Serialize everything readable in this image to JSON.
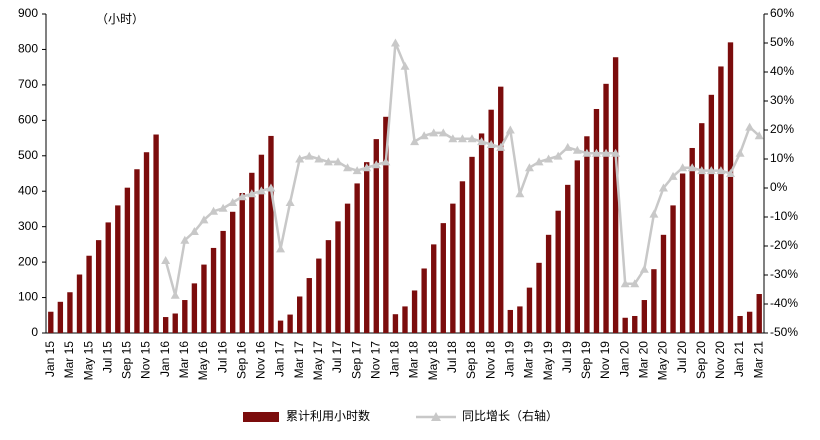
{
  "chart_data": {
    "type": "bar-line",
    "annotation": "（小时）",
    "categories": [
      "Jan 15",
      null,
      "Mar 15",
      null,
      "May 15",
      null,
      "Jul 15",
      null,
      "Sep 15",
      null,
      "Nov 15",
      null,
      "Jan 16",
      null,
      "Mar 16",
      null,
      "May 16",
      null,
      "Jul 16",
      null,
      "Sep 16",
      null,
      "Nov 16",
      null,
      "Jan 17",
      null,
      "Mar 17",
      null,
      "May 17",
      null,
      "Jul 17",
      null,
      "Sep 17",
      null,
      "Nov 17",
      null,
      "Jan 18",
      null,
      "Mar 18",
      null,
      "May 18",
      null,
      "Jul 18",
      null,
      "Sep 18",
      null,
      "Nov 18",
      null,
      "Jan 19",
      null,
      "Mar 19",
      null,
      "May 19",
      null,
      "Jul 19",
      null,
      "Sep 19",
      null,
      "Nov 19",
      null,
      "Jan 20",
      null,
      "Mar 20",
      null,
      "May 20",
      null,
      "Jul 20",
      null,
      "Sep 20",
      null,
      "Nov 20",
      null,
      "Jan 21",
      null,
      "Mar 21"
    ],
    "series": [
      {
        "name": "累计利用小时数",
        "color": "#7b0c0c",
        "type": "bar",
        "values": [
          60,
          88,
          115,
          165,
          218,
          262,
          312,
          360,
          410,
          462,
          510,
          560,
          45,
          55,
          93,
          140,
          193,
          240,
          288,
          342,
          395,
          452,
          503,
          556,
          35,
          52,
          103,
          155,
          210,
          262,
          315,
          365,
          422,
          482,
          547,
          610,
          53,
          75,
          120,
          182,
          250,
          310,
          365,
          428,
          497,
          563,
          630,
          695,
          65,
          75,
          128,
          198,
          277,
          345,
          418,
          487,
          555,
          632,
          703,
          778,
          43,
          48,
          93,
          180,
          277,
          360,
          450,
          522,
          592,
          672,
          752,
          820,
          48,
          60,
          110
        ]
      },
      {
        "name": "同比增长（右轴）",
        "color": "#c8c8c8",
        "type": "line",
        "axis": "y2",
        "values": [
          null,
          null,
          null,
          null,
          null,
          null,
          null,
          null,
          null,
          null,
          null,
          null,
          -25,
          -37,
          -18,
          -15,
          -11,
          -8,
          -7,
          -5,
          -3,
          -2,
          -1,
          0,
          -21,
          -5,
          10,
          11,
          10,
          9,
          9,
          7,
          6,
          7,
          8,
          9,
          50,
          42,
          16,
          18,
          19,
          19,
          17,
          17,
          17,
          16,
          15,
          14,
          20,
          -2,
          7,
          9,
          10,
          11,
          14,
          13,
          12,
          12,
          12,
          12,
          -33,
          -33,
          -28,
          -9,
          0,
          4,
          7,
          7,
          6,
          6,
          6,
          5,
          12,
          21,
          18
        ]
      }
    ],
    "ylim": [
      0,
      900
    ],
    "yticks": [
      0,
      100,
      200,
      300,
      400,
      500,
      600,
      700,
      800,
      900
    ],
    "y2lim": [
      -50,
      60
    ],
    "y2ticks": [
      {
        "value": -50,
        "label": "-50%"
      },
      {
        "value": -40,
        "label": "-40%"
      },
      {
        "value": -30,
        "label": "-30%"
      },
      {
        "value": -20,
        "label": "-20%"
      },
      {
        "value": -10,
        "label": "-10%"
      },
      {
        "value": 0,
        "label": "0%"
      },
      {
        "value": 10,
        "label": "10%"
      },
      {
        "value": 20,
        "label": "20%"
      },
      {
        "value": 30,
        "label": "30%"
      },
      {
        "value": 40,
        "label": "40%"
      },
      {
        "value": 50,
        "label": "50%"
      },
      {
        "value": 60,
        "label": "60%"
      }
    ],
    "legend": "bottom"
  }
}
